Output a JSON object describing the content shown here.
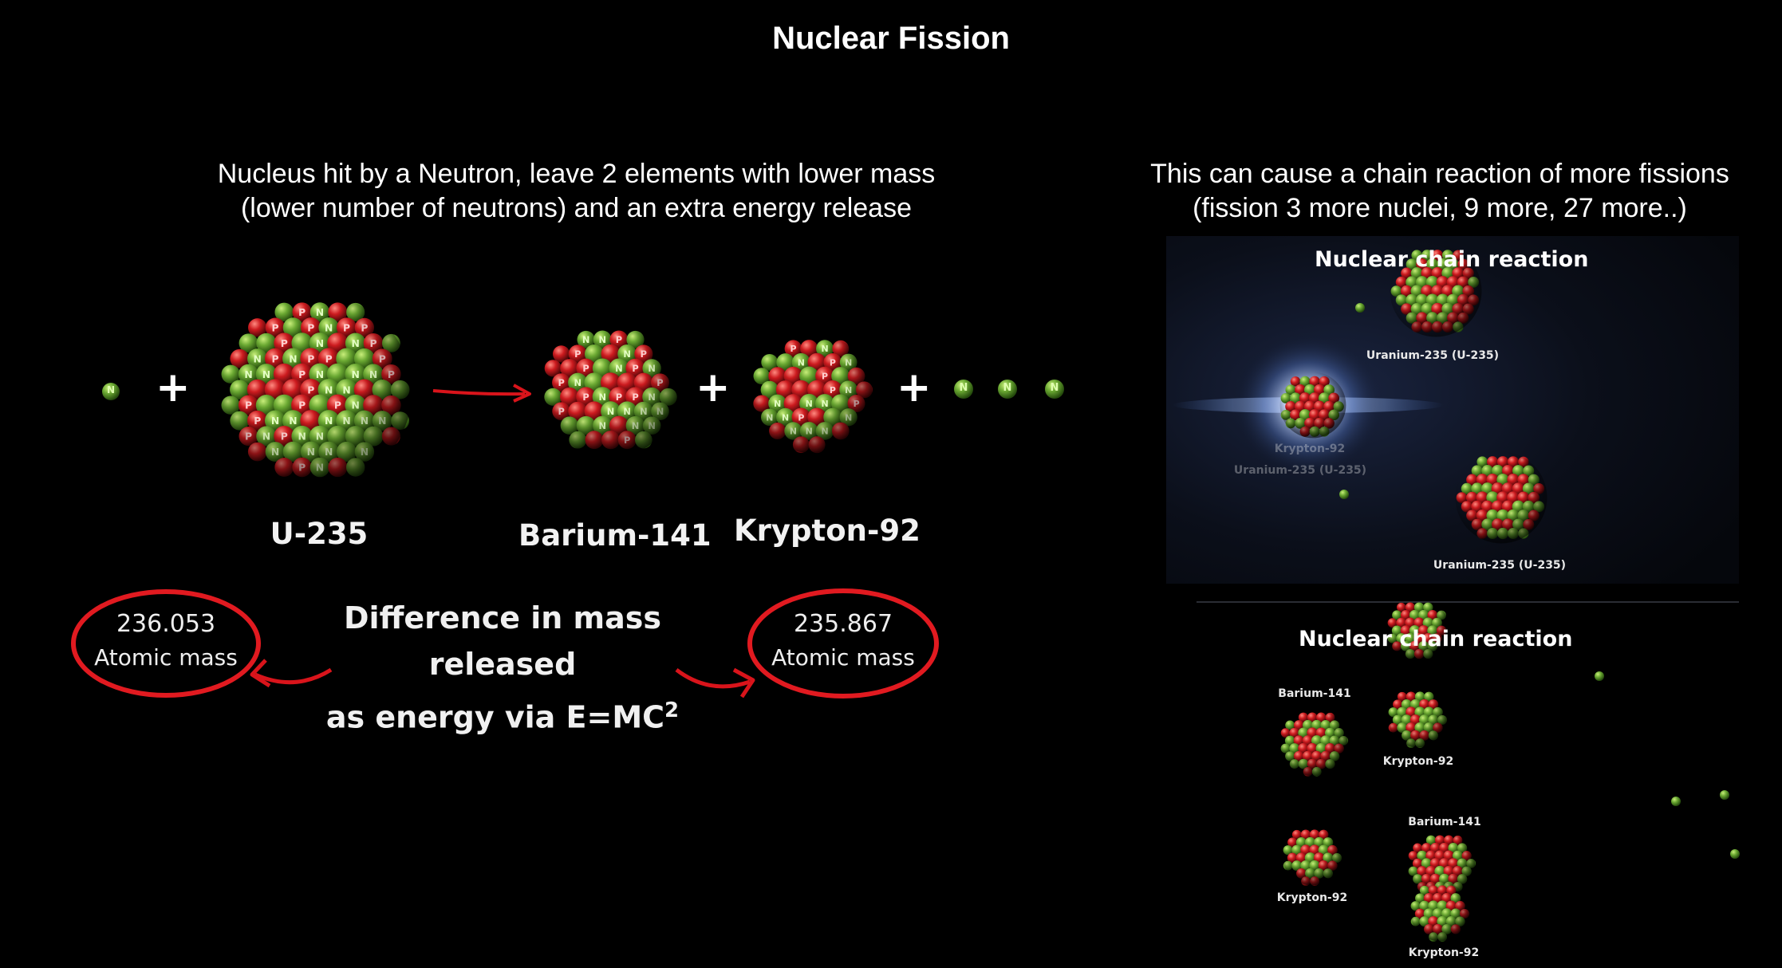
{
  "title": "Nuclear Fission",
  "left": {
    "subtitle_line1": "Nucleus hit by a Neutron, leave 2 elements with lower mass",
    "subtitle_line2": "(lower number of neutrons) and an extra energy release",
    "neutron_letter": "N",
    "proton_letter": "P",
    "plus": "+",
    "labels": {
      "u235": "U-235",
      "barium": "Barium-141",
      "krypton": "Krypton-92"
    },
    "mass_left": {
      "value": "236.053",
      "label": "Atomic mass"
    },
    "mass_right": {
      "value": "235.867",
      "label": "Atomic mass"
    },
    "difference_line1": "Difference in mass released",
    "difference_line2_prefix": "as energy via E=MC",
    "difference_line2_sup": "2"
  },
  "right": {
    "subtitle_line1": "This can cause a chain reaction of more fissions",
    "subtitle_line2": "(fission 3 more nuclei, 9 more, 27 more..)",
    "panel_top": {
      "title": "Nuclear chain reaction",
      "labels": [
        "Uranium-235 (U-235)",
        "Uranium-235 (U-235)",
        "Krypton-92",
        "Uranium-235 (U-235)"
      ]
    },
    "panel_bottom": {
      "title": "Nuclear chain reaction",
      "labels": [
        "Barium-141",
        "Krypton-92",
        "Barium-141",
        "Krypton-92",
        "Krypton-92"
      ]
    }
  },
  "colors": {
    "proton": "#c4161c",
    "neutron": "#5f9e2a",
    "arrow": "#d9141b",
    "background": "#000000"
  }
}
